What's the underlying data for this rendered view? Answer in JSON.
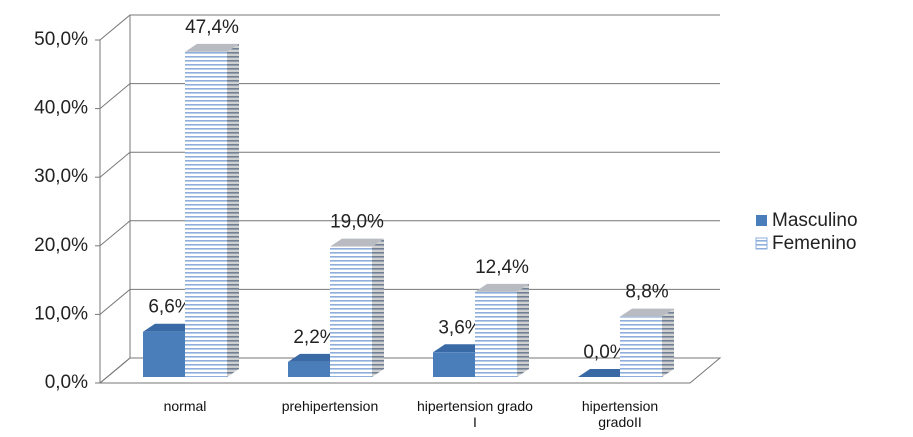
{
  "chart_data": {
    "type": "bar3d",
    "categories": [
      "normal",
      "prehipertension",
      "hipertension grado I",
      "hipertension gradoII"
    ],
    "series": [
      {
        "name": "Masculino",
        "color": "#4a7ebb",
        "values": [
          6.6,
          2.2,
          3.6,
          0.0
        ],
        "value_labels": [
          "6,6%",
          "2,2%",
          "3,6%",
          "0,0%"
        ]
      },
      {
        "name": "Femenino",
        "color": "#9ab6db",
        "values": [
          47.4,
          19.0,
          12.4,
          8.8
        ],
        "value_labels": [
          "47,4%",
          "19,0%",
          "12,4%",
          "8,8%"
        ]
      }
    ],
    "ylim": [
      0,
      50
    ],
    "yticks": [
      {
        "value": 0,
        "label": "0,0%"
      },
      {
        "value": 10,
        "label": "10,0%"
      },
      {
        "value": 20,
        "label": "20,0%"
      },
      {
        "value": 30,
        "label": "30,0%"
      },
      {
        "value": 40,
        "label": "40,0%"
      },
      {
        "value": 50,
        "label": "50,0%"
      }
    ],
    "grid": true,
    "legend": "right"
  }
}
